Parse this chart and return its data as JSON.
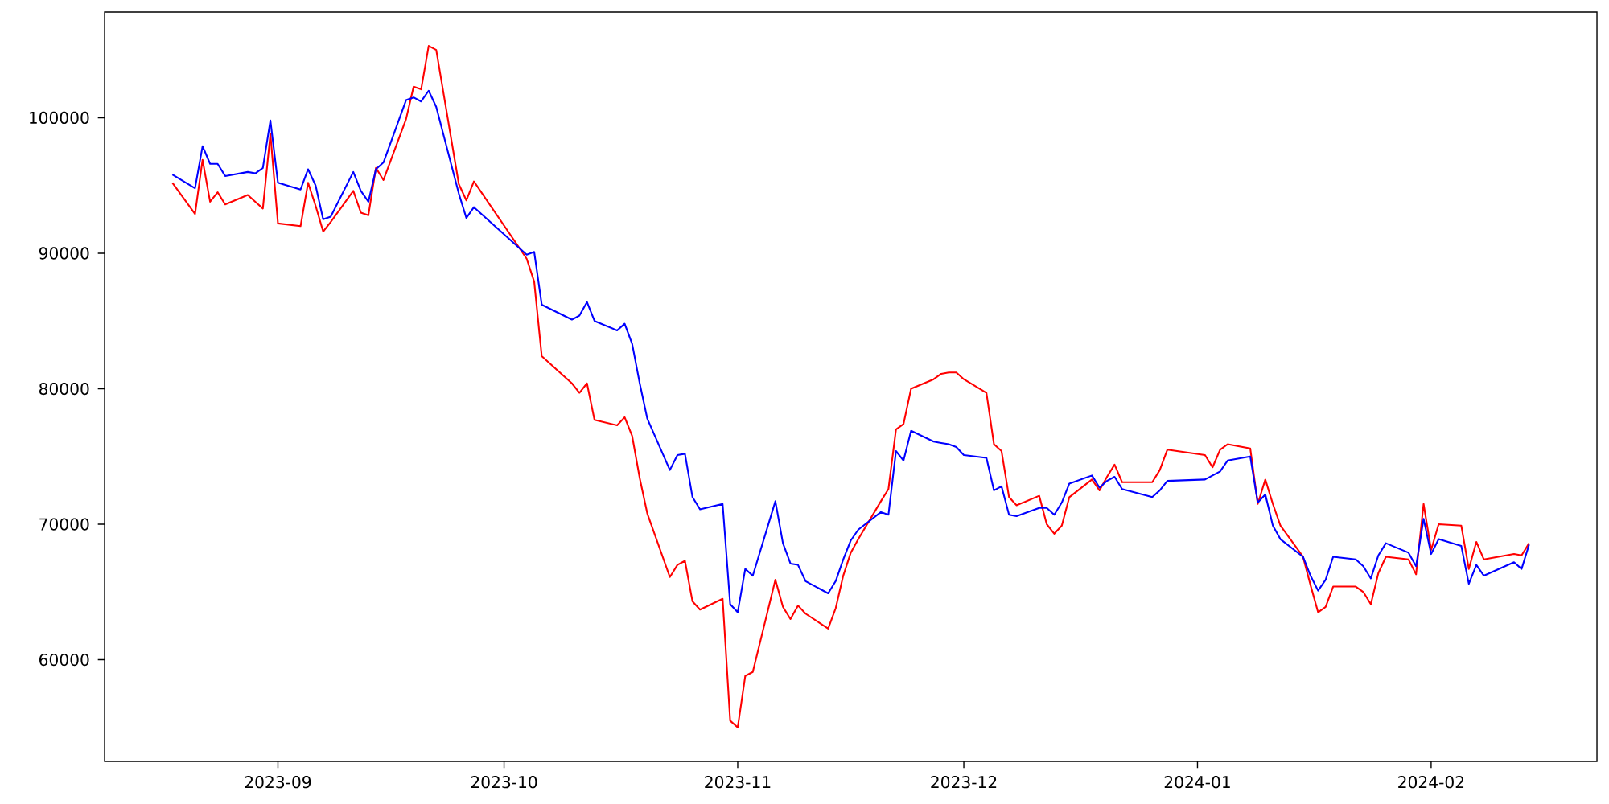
{
  "chart_data": {
    "type": "line",
    "x": [
      "2023-08-18",
      "2023-08-21",
      "2023-08-22",
      "2023-08-23",
      "2023-08-24",
      "2023-08-25",
      "2023-08-28",
      "2023-08-29",
      "2023-08-30",
      "2023-08-31",
      "2023-09-01",
      "2023-09-04",
      "2023-09-05",
      "2023-09-06",
      "2023-09-07",
      "2023-09-08",
      "2023-09-11",
      "2023-09-12",
      "2023-09-13",
      "2023-09-14",
      "2023-09-15",
      "2023-09-18",
      "2023-09-19",
      "2023-09-20",
      "2023-09-21",
      "2023-09-22",
      "2023-09-25",
      "2023-09-26",
      "2023-09-27",
      "2023-10-04",
      "2023-10-05",
      "2023-10-06",
      "2023-10-10",
      "2023-10-11",
      "2023-10-12",
      "2023-10-13",
      "2023-10-16",
      "2023-10-17",
      "2023-10-18",
      "2023-10-19",
      "2023-10-20",
      "2023-10-23",
      "2023-10-24",
      "2023-10-25",
      "2023-10-26",
      "2023-10-27",
      "2023-10-30",
      "2023-10-31",
      "2023-11-01",
      "2023-11-02",
      "2023-11-03",
      "2023-11-06",
      "2023-11-07",
      "2023-11-08",
      "2023-11-09",
      "2023-11-10",
      "2023-11-13",
      "2023-11-14",
      "2023-11-15",
      "2023-11-16",
      "2023-11-17",
      "2023-11-20",
      "2023-11-21",
      "2023-11-22",
      "2023-11-23",
      "2023-11-24",
      "2023-11-27",
      "2023-11-28",
      "2023-11-29",
      "2023-11-30",
      "2023-12-01",
      "2023-12-04",
      "2023-12-05",
      "2023-12-06",
      "2023-12-07",
      "2023-12-08",
      "2023-12-11",
      "2023-12-12",
      "2023-12-13",
      "2023-12-14",
      "2023-12-15",
      "2023-12-18",
      "2023-12-19",
      "2023-12-20",
      "2023-12-21",
      "2023-12-22",
      "2023-12-26",
      "2023-12-27",
      "2023-12-28",
      "2024-01-02",
      "2024-01-03",
      "2024-01-04",
      "2024-01-05",
      "2024-01-08",
      "2024-01-09",
      "2024-01-10",
      "2024-01-11",
      "2024-01-12",
      "2024-01-15",
      "2024-01-16",
      "2024-01-17",
      "2024-01-18",
      "2024-01-19",
      "2024-01-22",
      "2024-01-23",
      "2024-01-24",
      "2024-01-25",
      "2024-01-26",
      "2024-01-29",
      "2024-01-30",
      "2024-01-31",
      "2024-02-01",
      "2024-02-02",
      "2024-02-05",
      "2024-02-06",
      "2024-02-07",
      "2024-02-08",
      "2024-02-12",
      "2024-02-13",
      "2024-02-14"
    ],
    "series": [
      {
        "color": "#ff0000",
        "values": [
          95200,
          92900,
          96900,
          93800,
          94500,
          93600,
          94300,
          93800,
          93300,
          98800,
          92200,
          92000,
          95200,
          93500,
          91600,
          92300,
          94600,
          93000,
          92800,
          96300,
          95400,
          99900,
          102300,
          102100,
          105300,
          105000,
          95100,
          93900,
          95300,
          89600,
          87900,
          82400,
          80400,
          79700,
          80400,
          77700,
          77300,
          77900,
          76500,
          73400,
          70800,
          66100,
          67000,
          67300,
          64300,
          63700,
          64500,
          55500,
          55000,
          58800,
          59100,
          65900,
          63900,
          63000,
          64000,
          63400,
          62300,
          63800,
          66200,
          67900,
          68900,
          71700,
          72600,
          77000,
          77400,
          80000,
          80700,
          81100,
          81200,
          81200,
          80700,
          79700,
          75900,
          75400,
          72000,
          71400,
          72100,
          70000,
          69300,
          69900,
          72000,
          73300,
          72500,
          73500,
          74400,
          73100,
          73100,
          74000,
          75500,
          75100,
          74200,
          75500,
          75900,
          75600,
          71500,
          73300,
          71500,
          69900,
          67600,
          65500,
          63500,
          63900,
          65400,
          65400,
          65000,
          64100,
          66400,
          67600,
          67400,
          66300,
          71500,
          68100,
          70000,
          69900,
          66700,
          68700,
          67400,
          67800,
          67700,
          68600
        ]
      },
      {
        "color": "#0000ff",
        "values": [
          95800,
          94800,
          97900,
          96600,
          96600,
          95700,
          96000,
          95900,
          96300,
          99800,
          95200,
          94700,
          96200,
          95000,
          92500,
          92700,
          96000,
          94600,
          93800,
          96200,
          96700,
          101300,
          101500,
          101200,
          102000,
          100800,
          94400,
          92600,
          93400,
          89900,
          90100,
          86200,
          85100,
          85400,
          86400,
          85000,
          84300,
          84800,
          83300,
          80400,
          77800,
          74000,
          75100,
          75200,
          72000,
          71100,
          71500,
          64100,
          63500,
          66700,
          66200,
          71700,
          68600,
          67100,
          67000,
          65800,
          64900,
          65800,
          67400,
          68800,
          69600,
          70900,
          70700,
          75400,
          74700,
          76900,
          76100,
          76000,
          75900,
          75700,
          75100,
          74900,
          72500,
          72800,
          70700,
          70600,
          71200,
          71200,
          70700,
          71600,
          73000,
          73600,
          72700,
          73200,
          73500,
          72600,
          72000,
          72500,
          73200,
          73300,
          73600,
          73900,
          74700,
          75000,
          71600,
          72200,
          69900,
          68900,
          67600,
          66200,
          65100,
          65900,
          67600,
          67400,
          66900,
          66000,
          67700,
          68600,
          67900,
          66900,
          70400,
          67800,
          68900,
          68400,
          65600,
          67000,
          66200,
          67200,
          66700,
          68500
        ]
      }
    ],
    "xlim": [
      "2023-08-09",
      "2024-02-23"
    ],
    "xticks": [
      "2023-09",
      "2023-10",
      "2023-11",
      "2023-12",
      "2024-01",
      "2024-02"
    ],
    "ylim": [
      52500,
      107800
    ],
    "yticks": [
      60000,
      70000,
      80000,
      90000,
      100000
    ]
  }
}
